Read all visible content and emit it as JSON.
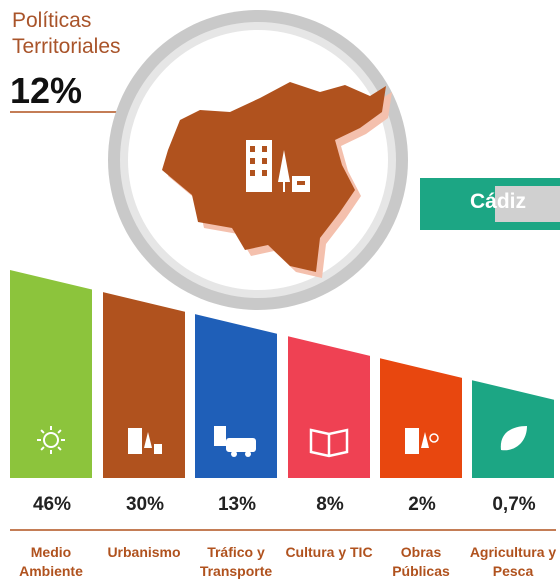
{
  "header": {
    "title": "Políticas Territoriales",
    "value": "12%"
  },
  "region": "Cádiz",
  "items": [
    {
      "value": "46%",
      "label": "Medio Ambiente",
      "color": "#8cc43c"
    },
    {
      "value": "30%",
      "label": "Urbanismo",
      "color": "#b0521e"
    },
    {
      "value": "13%",
      "label": "Tráfico y Transporte",
      "color": "#1f5fb8"
    },
    {
      "value": "8%",
      "label": "Cultura y TIC",
      "color": "#ef4153"
    },
    {
      "value": "2%",
      "label": "Obras Públicas",
      "color": "#e8470f"
    },
    {
      "value": "0,7%",
      "label": "Agricultura y Pesca",
      "color": "#1ca684"
    }
  ]
}
